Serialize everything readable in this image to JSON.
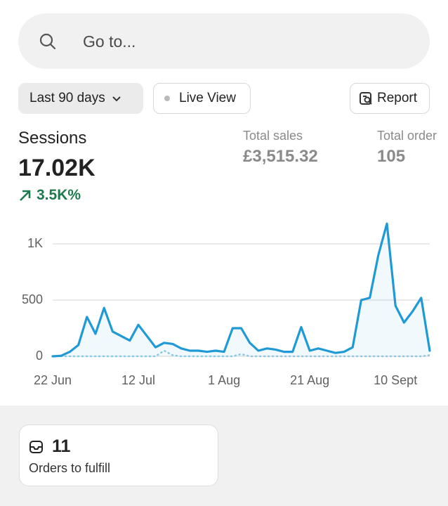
{
  "search": {
    "placeholder": "Go to..."
  },
  "filters": {
    "range": "Last 90 days",
    "live": "Live View",
    "report": "Report"
  },
  "metrics": {
    "sessions_label": "Sessions",
    "sessions_value": "17.02K",
    "sessions_change": "3.5K%",
    "sales_label": "Total sales",
    "sales_value": "£3,515.32",
    "orders_label": "Total order",
    "orders_value": "105"
  },
  "chart_data": {
    "type": "line",
    "categories": [
      "22 Jun",
      null,
      null,
      null,
      null,
      null,
      null,
      null,
      null,
      null,
      "12 Jul",
      null,
      null,
      null,
      null,
      null,
      null,
      null,
      null,
      null,
      "1 Aug",
      null,
      null,
      null,
      null,
      null,
      null,
      null,
      null,
      null,
      "21 Aug",
      null,
      null,
      null,
      null,
      null,
      null,
      null,
      null,
      null,
      "10 Sept",
      null,
      null,
      null,
      null
    ],
    "series": [
      {
        "color": "#1f9ad6",
        "values": [
          0,
          5,
          40,
          100,
          350,
          200,
          430,
          220,
          180,
          140,
          280,
          180,
          80,
          120,
          110,
          70,
          50,
          50,
          40,
          50,
          40,
          250,
          250,
          120,
          50,
          70,
          60,
          40,
          40,
          260,
          50,
          70,
          50,
          30,
          40,
          80,
          500,
          520,
          900,
          1180,
          450,
          300,
          400,
          520,
          50
        ]
      },
      {
        "color": "#8ccbe8",
        "dashed": true,
        "values": [
          0,
          0,
          0,
          0,
          0,
          0,
          0,
          0,
          0,
          0,
          0,
          0,
          0,
          50,
          10,
          0,
          0,
          0,
          0,
          0,
          0,
          0,
          20,
          0,
          0,
          0,
          0,
          0,
          0,
          0,
          0,
          0,
          0,
          0,
          0,
          0,
          0,
          0,
          0,
          0,
          0,
          0,
          0,
          0,
          10
        ]
      }
    ],
    "ylim": [
      0,
      1200
    ],
    "yticks": [
      0,
      500,
      {
        "value": 1000,
        "label": "1K"
      }
    ],
    "grid": true
  },
  "card": {
    "count": "11",
    "label": "Orders to fulfill"
  }
}
